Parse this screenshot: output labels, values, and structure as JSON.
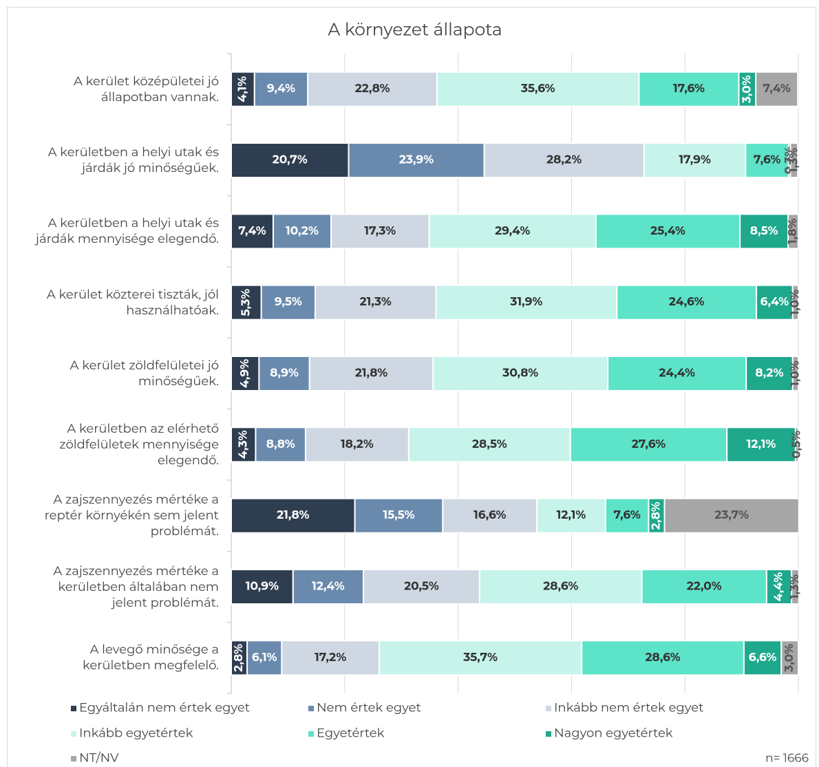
{
  "chart_data": {
    "type": "stacked-barh",
    "title": "A környezet állapota",
    "categories": [
      "A kerület középületei jó\nállapotban vannak.",
      "A kerületben a helyi utak és\njárdák jó minőségűek.",
      "A kerületben a helyi utak és\njárdák mennyisége elegendő.",
      "A kerület közterei tiszták, jól\nhasználhatóak.",
      "A kerület zöldfelületei jó\nminőségűek.",
      "A kerületben az elérhető\nzöldfelületek mennyisége\nelegendő.",
      "A zajszennyezés mértéke a\nreptér környékén sem jelent\nproblémát.",
      "A zajszennyezés mértéke a\nkerületben általában nem\njelent problémát.",
      "A levegő minősége a\nkerületben megfelelő."
    ],
    "series": [
      {
        "name": "Egyáltalán nem értek egyet",
        "color": "#2e3d4f",
        "values": [
          4.1,
          20.7,
          7.4,
          5.3,
          4.9,
          4.3,
          21.8,
          10.9,
          2.8
        ],
        "value_labels": [
          "4,1%",
          "20,7%",
          "7,4%",
          "5,3%",
          "4,9%",
          "4,3%",
          "21,8%",
          "10,9%",
          "2,8%"
        ]
      },
      {
        "name": "Nem értek egyet",
        "color": "#6a8aad",
        "values": [
          9.4,
          23.9,
          10.2,
          9.5,
          8.9,
          8.8,
          15.5,
          12.4,
          6.1
        ],
        "value_labels": [
          "9,4%",
          "23,9%",
          "10,2%",
          "9,5%",
          "8,9%",
          "8,8%",
          "15,5%",
          "12,4%",
          "6,1%"
        ]
      },
      {
        "name": "Inkább nem értek egyet",
        "color": "#cfd8e2",
        "values": [
          22.8,
          28.2,
          17.3,
          21.3,
          21.8,
          18.2,
          16.6,
          20.5,
          17.2
        ],
        "value_labels": [
          "22,8%",
          "28,2%",
          "17,3%",
          "21,3%",
          "21,8%",
          "18,2%",
          "16,6%",
          "20,5%",
          "17,2%"
        ]
      },
      {
        "name": "Inkább egyetértek",
        "color": "#c6f4ea",
        "values": [
          35.6,
          17.9,
          29.4,
          31.9,
          30.8,
          28.5,
          12.1,
          28.6,
          35.7
        ],
        "value_labels": [
          "35,6%",
          "17,9%",
          "29,4%",
          "31,9%",
          "30,8%",
          "28,5%",
          "12,1%",
          "28,6%",
          "35,7%"
        ]
      },
      {
        "name": "Egyetértek",
        "color": "#5de3c8",
        "values": [
          17.6,
          7.6,
          25.4,
          24.6,
          24.4,
          27.6,
          7.6,
          22.0,
          28.6
        ],
        "value_labels": [
          "17,6%",
          "7,6%",
          "25,4%",
          "24,6%",
          "24,4%",
          "27,6%",
          "7,6%",
          "22,0%",
          "28,6%"
        ]
      },
      {
        "name": "Nagyon egyetértek",
        "color": "#1ea88c",
        "values": [
          3.0,
          0.3,
          8.5,
          6.4,
          8.2,
          12.1,
          2.8,
          4.4,
          6.6
        ],
        "value_labels": [
          "3,0%",
          "0,3%",
          "8,5%",
          "6,4%",
          "8,2%",
          "12,1%",
          "2,8%",
          "4,4%",
          "6,6%"
        ]
      },
      {
        "name": "NT/NV",
        "color": "#a6a6a6",
        "values": [
          7.4,
          1.3,
          1.8,
          1.0,
          1.0,
          0.5,
          23.7,
          1.3,
          3.0
        ],
        "value_labels": [
          "7,4%",
          "1,3%",
          "1,8%",
          "1,0%",
          "1,0%",
          "0,5%",
          "23,7%",
          "1,3%",
          "3,0%"
        ]
      }
    ],
    "xlim": [
      0,
      100
    ],
    "xticks": [
      0,
      20,
      40,
      60,
      80,
      100
    ],
    "grid": true,
    "annotation": "n= 1666"
  }
}
